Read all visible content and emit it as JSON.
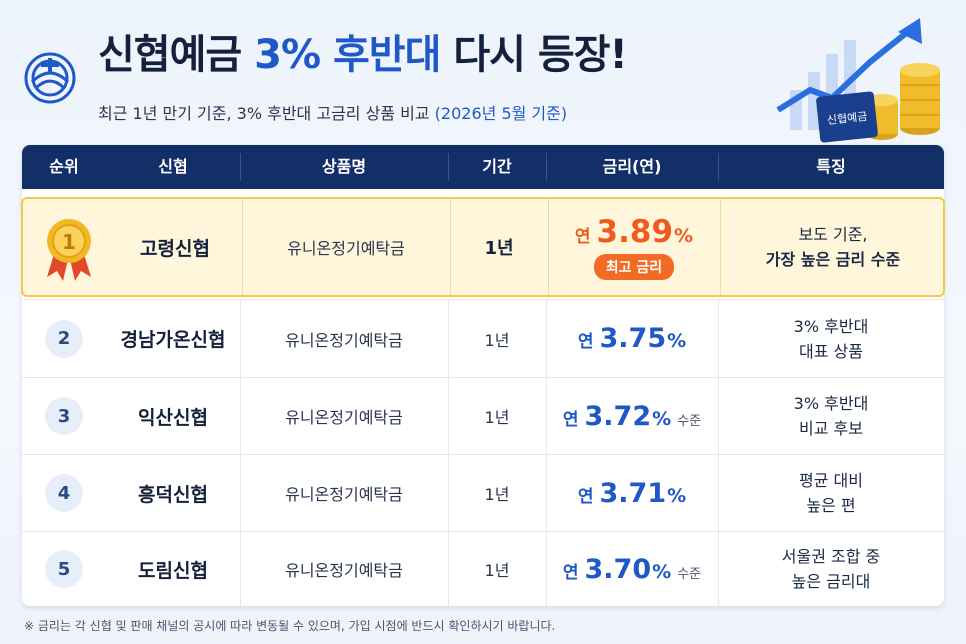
{
  "header": {
    "title_part1": "신협예금 ",
    "title_highlight": "3% 후반대",
    "title_part2": " 다시 등장!",
    "subtitle_main": "최근 1년 만기 기준, 3% 후반대 고금리 상품 비교 ",
    "subtitle_date": "(2026년 5월 기준)",
    "badge_text": "신협예금"
  },
  "table": {
    "columns": [
      "순위",
      "신협",
      "상품명",
      "기간",
      "금리(연)",
      "특징"
    ],
    "rows": [
      {
        "rank": "1",
        "bank": "고령신협",
        "product": "유니온정기예탁금",
        "period": "1년",
        "rate_prefix": "연",
        "rate": "3.89",
        "rate_unit": "%",
        "rate_suffix": "",
        "badge": "최고 금리",
        "feature_l1": "보도 기준,",
        "feature_l2": "가장 높은 금리 수준"
      },
      {
        "rank": "2",
        "bank": "경남가온신협",
        "product": "유니온정기예탁금",
        "period": "1년",
        "rate_prefix": "연",
        "rate": "3.75",
        "rate_unit": "%",
        "rate_suffix": "",
        "feature_l1": "3% 후반대",
        "feature_l2": "대표 상품"
      },
      {
        "rank": "3",
        "bank": "익산신협",
        "product": "유니온정기예탁금",
        "period": "1년",
        "rate_prefix": "연",
        "rate": "3.72",
        "rate_unit": "%",
        "rate_suffix": "수준",
        "feature_l1": "3% 후반대",
        "feature_l2": "비교 후보"
      },
      {
        "rank": "4",
        "bank": "흥덕신협",
        "product": "유니온정기예탁금",
        "period": "1년",
        "rate_prefix": "연",
        "rate": "3.71",
        "rate_unit": "%",
        "rate_suffix": "",
        "feature_l1": "평균 대비",
        "feature_l2": "높은 편"
      },
      {
        "rank": "5",
        "bank": "도림신협",
        "product": "유니온정기예탁금",
        "period": "1년",
        "rate_prefix": "연",
        "rate": "3.70",
        "rate_unit": "%",
        "rate_suffix": "수준",
        "feature_l1": "서울권 조합 중",
        "feature_l2": "높은 금리대"
      }
    ]
  },
  "footnote": "※ 금리는 각 신협 및 판매 채널의 공시에 따라 변동될 수 있으며, 가입 시점에 반드시 확인하시기 바랍니다.",
  "colors": {
    "accent": "#1f58c7",
    "header_bg": "#132f68",
    "highlight_bg": "#fff6dc",
    "highlight_border": "#f2c94c",
    "best_rate": "#f05a1e"
  },
  "icons": [
    "shinhyup-logo-icon",
    "medal-icon",
    "rising-chart-icon",
    "coin-stack-icon",
    "passbook-icon"
  ]
}
